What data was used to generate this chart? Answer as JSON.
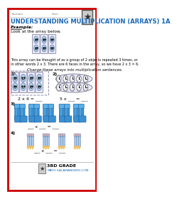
{
  "title": "UNDERSTANDING MULTIPLICATION (ARRAYS) 1A",
  "bg_color": "#ffffff",
  "border_color": "#cc0000",
  "title_color": "#1a6aba",
  "example_label": "Example:",
  "look_text": "Look at the array below.",
  "desc_line1": "This array can be thought of as a group of 2 objects repeated 3 times, or",
  "desc_line2": "in other words 2 x 3. There are 6 faces in the array, so we have 2 x 3 = 6.",
  "change_text": "Change these arrays into multiplication sentences.",
  "q1_text": "2 x 4 = ___",
  "q2_text": "5 x ___ = ___",
  "q3_blank": "___ x ___ = ___",
  "q4_blank": "___ x ___ = ___",
  "face_color": "#aad4f0",
  "sock_color": "#3a8fd0",
  "sock_highlight": "#5ab0e8",
  "sock_dark": "#1a60a0",
  "footer_grade": "3RD GRADE",
  "footer_url": "MATH-SALAMANDERS.COM"
}
